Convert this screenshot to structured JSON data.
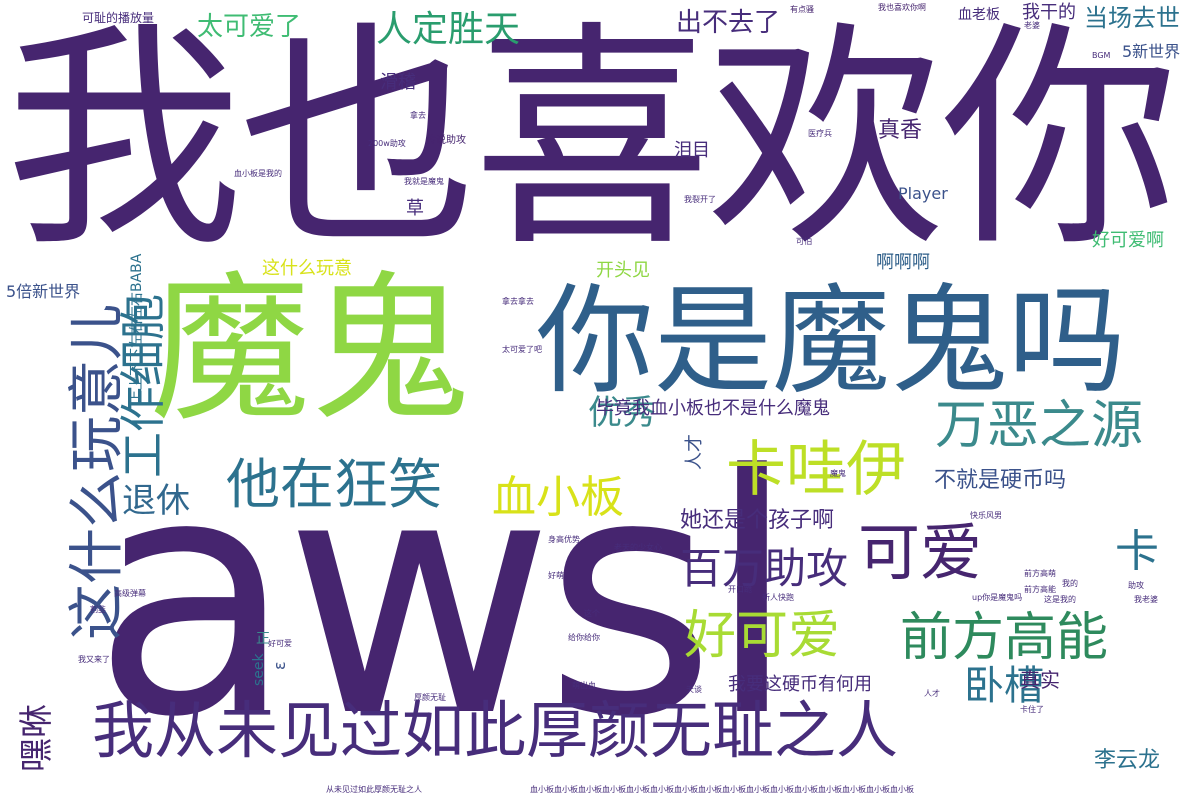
{
  "words": [
    {
      "text": "awsl",
      "color": "#46256f"
    },
    {
      "text": "我也喜欢你",
      "color": "#46256f"
    },
    {
      "text": "魔鬼",
      "color": "#8fd744"
    },
    {
      "text": "你是魔鬼吗",
      "color": "#2f5f8a"
    },
    {
      "text": "我从未见过如此厚颜无耻之人",
      "color": "#472d7b"
    },
    {
      "text": "这什么玩意儿",
      "color": "#3b528b"
    },
    {
      "text": "工作细胞",
      "color": "#2c728e"
    },
    {
      "text": "他在狂笑",
      "color": "#2c728e"
    },
    {
      "text": "卡哇伊",
      "color": "#bddf26"
    },
    {
      "text": "万恶之源",
      "color": "#3b8a8c"
    },
    {
      "text": "血小板",
      "color": "#d8e219"
    },
    {
      "text": "可爱",
      "color": "#46256f"
    },
    {
      "text": "好可爱",
      "color": "#a8db34"
    },
    {
      "text": "前方高能",
      "color": "#2e8a5d"
    },
    {
      "text": "百万助攻",
      "color": "#472d7b"
    },
    {
      "text": "卧槽",
      "color": "#2c728e"
    },
    {
      "text": "人定胜天",
      "color": "#2a9d6e"
    },
    {
      "text": "太可爱了",
      "color": "#3fbc73"
    },
    {
      "text": "出不去了",
      "color": "#472d7b"
    },
    {
      "text": "优秀",
      "color": "#3b8a8c"
    },
    {
      "text": "退休",
      "color": "#31688e"
    },
    {
      "text": "嘿咻",
      "color": "#46256f"
    },
    {
      "text": "真香",
      "color": "#46256f"
    },
    {
      "text": "当场去世",
      "color": "#2c728e"
    },
    {
      "text": "卡",
      "color": "#2c728e"
    },
    {
      "text": "不就是硬币吗",
      "color": "#3b528b"
    },
    {
      "text": "她还是个孩子啊",
      "color": "#472d7b"
    },
    {
      "text": "毕竟我血小板也不是什么魔鬼",
      "color": "#472d7b"
    },
    {
      "text": "我要这硬币有何用",
      "color": "#472d7b"
    },
    {
      "text": "真实",
      "color": "#46256f"
    },
    {
      "text": "李云龙",
      "color": "#2c728e"
    },
    {
      "text": "好可爱啊",
      "color": "#3fbc73"
    },
    {
      "text": "这什么玩意",
      "color": "#d8e219"
    },
    {
      "text": "开头见",
      "color": "#8fd744"
    },
    {
      "text": "啊啊啊",
      "color": "#2f5f8a"
    },
    {
      "text": "泪目",
      "color": "#472d7b"
    },
    {
      "text": "滑稽",
      "color": "#472d7b"
    },
    {
      "text": "5新世界",
      "color": "#3b528b"
    },
    {
      "text": "5倍新世界",
      "color": "#3b528b"
    },
    {
      "text": "Player",
      "color": "#3b528b"
    },
    {
      "text": "草",
      "color": "#472d7b"
    },
    {
      "text": "我干的",
      "color": "#472d7b"
    },
    {
      "text": "血老板",
      "color": "#472d7b"
    },
    {
      "text": "可耻的播放量",
      "color": "#472d7b"
    },
    {
      "text": "上上下下左右左右BABA",
      "color": "#2c728e"
    },
    {
      "text": "seek",
      "color": "#2c728e"
    },
    {
      "text": "ε",
      "color": "#3b528b"
    },
    {
      "text": "人才",
      "color": "#3b528b"
    },
    {
      "text": "正",
      "color": "#3b8a8c"
    },
    {
      "text": "我也喜欢你啊",
      "color": "#46256f"
    },
    {
      "text": "有点骚",
      "color": "#46256f"
    },
    {
      "text": "我就是魔鬼",
      "color": "#472d7b"
    },
    {
      "text": "拿去",
      "color": "#472d7b"
    },
    {
      "text": "拿去拿去",
      "color": "#472d7b"
    },
    {
      "text": "传说助攻",
      "color": "#46256f"
    },
    {
      "text": "200w助攻",
      "color": "#472d7b"
    },
    {
      "text": "血小板是我的",
      "color": "#472d7b"
    },
    {
      "text": "我裂开了",
      "color": "#472d7b"
    },
    {
      "text": "医疗兵",
      "color": "#472d7b"
    },
    {
      "text": "老婆",
      "color": "#472d7b"
    },
    {
      "text": "BGM",
      "color": "#472d7b"
    },
    {
      "text": "太可爱了吧",
      "color": "#472d7b"
    },
    {
      "text": "给你给你",
      "color": "#472d7b"
    },
    {
      "text": "我又来了",
      "color": "#472d7b"
    },
    {
      "text": "前方高萌",
      "color": "#472d7b"
    },
    {
      "text": "开口跪",
      "color": "#472d7b"
    },
    {
      "text": "新人快跑",
      "color": "#472d7b"
    },
    {
      "text": "up你是魔鬼吗",
      "color": "#472d7b"
    },
    {
      "text": "厚颜无耻",
      "color": "#472d7b"
    },
    {
      "text": "萌出血",
      "color": "#472d7b"
    },
    {
      "text": "这个",
      "color": "#472d7b"
    },
    {
      "text": "好萌",
      "color": "#472d7b"
    },
    {
      "text": "前方高能",
      "color": "#472d7b"
    },
    {
      "text": "老天的少女心",
      "color": "#472d7b"
    },
    {
      "text": "身高优势",
      "color": "#472d7b"
    },
    {
      "text": "快乐风男",
      "color": "#472d7b"
    },
    {
      "text": "助攻",
      "color": "#472d7b"
    },
    {
      "text": "我老婆",
      "color": "#472d7b"
    },
    {
      "text": "我的",
      "color": "#472d7b"
    },
    {
      "text": "天谈",
      "color": "#472d7b"
    },
    {
      "text": "魔鬼",
      "color": "#472d7b"
    },
    {
      "text": "人才",
      "color": "#472d7b"
    },
    {
      "text": "高级弹幕",
      "color": "#472d7b"
    },
    {
      "text": "可怕",
      "color": "#472d7b"
    },
    {
      "text": "好可爱",
      "color": "#472d7b"
    },
    {
      "text": "割韭",
      "color": "#472d7b"
    },
    {
      "text": "这是我的",
      "color": "#472d7b"
    },
    {
      "text": "血小板血小板血小板血小板血小板血小板血小板血小板血小板血小板血小板血小板血小板血小板血小板血小板",
      "color": "#472d7b"
    },
    {
      "text": "从未见过如此厚颜无耻之人",
      "color": "#472d7b"
    },
    {
      "text": "卡住了",
      "color": "#472d7b"
    }
  ]
}
